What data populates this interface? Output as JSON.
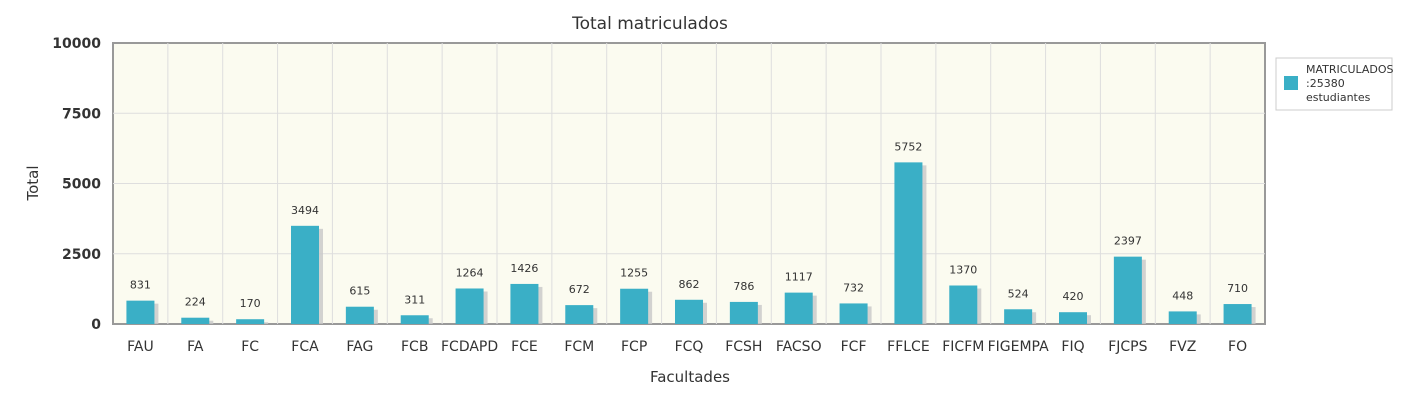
{
  "chart_data": {
    "type": "bar",
    "title": "Total matriculados",
    "xlabel": "Facultades",
    "ylabel": "Total",
    "ylim": [
      0,
      10000
    ],
    "yticks": [
      "0",
      "2500",
      "5000",
      "7500",
      "10000"
    ],
    "categories": [
      "FAU",
      "FA",
      "FC",
      "FCA",
      "FAG",
      "FCB",
      "FCDAPD",
      "FCE",
      "FCM",
      "FCP",
      "FCQ",
      "FCSH",
      "FACSO",
      "FCF",
      "FFLCE",
      "FICFM",
      "FIGEMPA",
      "FIQ",
      "FJCPS",
      "FVZ",
      "FO"
    ],
    "series": [
      {
        "name": "MATRICULADOS :25380 estudiantes",
        "values": [
          831,
          224,
          170,
          3494,
          615,
          311,
          1264,
          1426,
          672,
          1255,
          862,
          786,
          1117,
          732,
          5752,
          1370,
          524,
          420,
          2397,
          448,
          710
        ]
      }
    ],
    "grid": true,
    "legend_position": "right",
    "legend_lines": [
      "MATRICULADOS",
      ":25380",
      "estudiantes"
    ],
    "colors": {
      "bar": "#3aafc6",
      "bar_shadow": "#c8c8c8",
      "plot_bg": "#fbfbf0",
      "grid": "#dedede",
      "axis": "#999999"
    }
  }
}
